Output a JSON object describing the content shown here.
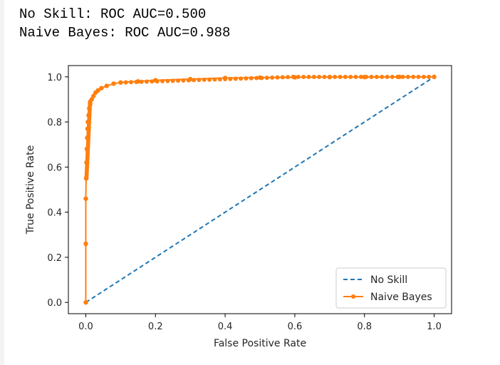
{
  "output": {
    "line1": "No Skill: ROC AUC=0.500",
    "line2": "Naive Bayes: ROC AUC=0.988"
  },
  "chart_data": {
    "type": "line",
    "xlabel": "False Positive Rate",
    "ylabel": "True Positive Rate",
    "xlim": [
      -0.05,
      1.05
    ],
    "ylim": [
      -0.05,
      1.05
    ],
    "xticks": [
      "0.0",
      "0.2",
      "0.4",
      "0.6",
      "0.8",
      "1.0"
    ],
    "yticks": [
      "0.0",
      "0.2",
      "0.4",
      "0.6",
      "0.8",
      "1.0"
    ],
    "grid": false,
    "legend_position": "lower-right",
    "series": [
      {
        "name": "No Skill",
        "style": "dashed",
        "marker": "none",
        "color": "#1f77b4",
        "x": [
          0,
          1
        ],
        "y": [
          0,
          1
        ]
      },
      {
        "name": "Naive Bayes",
        "style": "solid",
        "marker": "dot",
        "color": "#ff7f0e",
        "x": [
          0,
          0,
          0,
          0.001,
          0.002,
          0.003,
          0.004,
          0.005,
          0.006,
          0.008,
          0.01,
          0.013,
          0.017,
          0.022,
          0.028,
          0.035,
          0.045,
          0.06,
          0.08,
          0.1,
          0.15,
          0.2,
          0.3,
          0.4,
          0.5,
          0.6,
          0.7,
          0.8,
          0.9,
          1.0
        ],
        "y": [
          0,
          0.26,
          0.46,
          0.55,
          0.62,
          0.68,
          0.73,
          0.77,
          0.8,
          0.83,
          0.86,
          0.88,
          0.9,
          0.915,
          0.93,
          0.94,
          0.95,
          0.96,
          0.97,
          0.975,
          0.98,
          0.985,
          0.99,
          0.995,
          0.997,
          0.998,
          0.999,
          0.999,
          1.0,
          1.0
        ]
      }
    ]
  }
}
